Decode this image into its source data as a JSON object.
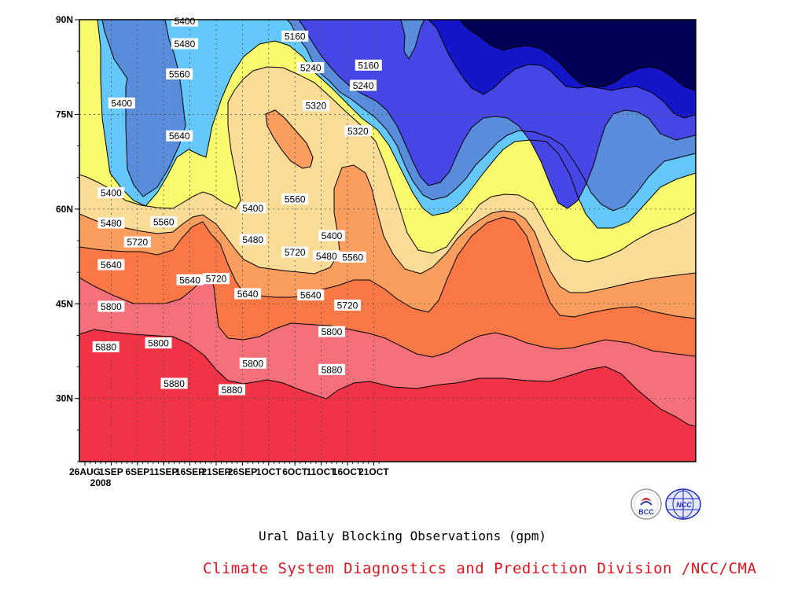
{
  "chart_data": {
    "type": "filled-contour",
    "title": "Ural Daily Blocking Observations (gpm)",
    "x_ticks": [
      "26AUG",
      "1SEP",
      "6SEP",
      "11SEP",
      "16SEP",
      "21SEP",
      "26SEP",
      "1OCT",
      "6OCT",
      "11OCT",
      "16OCT",
      "21OCT"
    ],
    "x_year": "2008",
    "x_range": [
      "2008-08-26",
      "2008-10-21"
    ],
    "y_ticks": [
      "90N",
      "75N",
      "60N",
      "45N",
      "30N"
    ],
    "y_values": [
      90,
      75,
      60,
      45,
      30
    ],
    "ylim": [
      20,
      90
    ],
    "grid": true,
    "contour_levels": [
      5160,
      5240,
      5320,
      5400,
      5480,
      5560,
      5640,
      5720,
      5800,
      5880
    ],
    "band_colors": {
      "below_5160": "#000055",
      "5160_5240": "#1414c8",
      "5240_5320": "#4646e6",
      "5320_5400": "#5a8cdc",
      "5400_5480": "#64c8fa",
      "5480_5560": "#fafa6e",
      "5560_5640": "#fadc96",
      "5640_5720": "#fa9e60",
      "5720_5800": "#fa7846",
      "5800_5880": "#f5707a",
      "above_5880": "#f03446"
    },
    "contour_labels": [
      {
        "text": "5400",
        "date": "2008-09-14",
        "lat": 89.8
      },
      {
        "text": "5480",
        "date": "2008-09-14",
        "lat": 86.2
      },
      {
        "text": "5560",
        "date": "2008-09-13",
        "lat": 81.4
      },
      {
        "text": "5640",
        "date": "2008-09-13",
        "lat": 71.6
      },
      {
        "text": "5400",
        "date": "2008-09-02",
        "lat": 76.8
      },
      {
        "text": "5160",
        "date": "2008-10-05",
        "lat": 87.4
      },
      {
        "text": "5240",
        "date": "2008-10-08",
        "lat": 82.4
      },
      {
        "text": "5320",
        "date": "2008-10-09",
        "lat": 76.4
      },
      {
        "text": "5160",
        "date": "2008-10-19",
        "lat": 82.8
      },
      {
        "text": "5240",
        "date": "2008-10-18",
        "lat": 79.6
      },
      {
        "text": "5320",
        "date": "2008-10-17",
        "lat": 72.4
      },
      {
        "text": "5400",
        "date": "2008-08-31",
        "lat": 62.6
      },
      {
        "text": "5480",
        "date": "2008-08-31",
        "lat": 57.8
      },
      {
        "text": "5640",
        "date": "2008-08-31",
        "lat": 51.2
      },
      {
        "text": "5800",
        "date": "2008-08-31",
        "lat": 44.6
      },
      {
        "text": "5880",
        "date": "2008-08-30",
        "lat": 38.2
      },
      {
        "text": "5720",
        "date": "2008-09-05",
        "lat": 54.8
      },
      {
        "text": "5560",
        "date": "2008-09-10",
        "lat": 58.0
      },
      {
        "text": "5640",
        "date": "2008-09-15",
        "lat": 48.8
      },
      {
        "text": "5720",
        "date": "2008-09-20",
        "lat": 49.0
      },
      {
        "text": "5800",
        "date": "2008-09-09",
        "lat": 38.8
      },
      {
        "text": "5880",
        "date": "2008-09-12",
        "lat": 32.4
      },
      {
        "text": "5880",
        "date": "2008-09-23",
        "lat": 31.4
      },
      {
        "text": "5400",
        "date": "2008-09-27",
        "lat": 60.2
      },
      {
        "text": "5480",
        "date": "2008-09-27",
        "lat": 55.2
      },
      {
        "text": "5640",
        "date": "2008-09-26",
        "lat": 46.6
      },
      {
        "text": "5800",
        "date": "2008-09-27",
        "lat": 35.6
      },
      {
        "text": "5560",
        "date": "2008-10-05",
        "lat": 61.6
      },
      {
        "text": "5720",
        "date": "2008-10-05",
        "lat": 53.2
      },
      {
        "text": "5400",
        "date": "2008-10-12",
        "lat": 55.8
      },
      {
        "text": "5480",
        "date": "2008-10-11",
        "lat": 52.6
      },
      {
        "text": "5560",
        "date": "2008-10-16",
        "lat": 52.4
      },
      {
        "text": "5640",
        "date": "2008-10-08",
        "lat": 46.4
      },
      {
        "text": "5720",
        "date": "2008-10-15",
        "lat": 44.8
      },
      {
        "text": "5800",
        "date": "2008-10-12",
        "lat": 40.6
      },
      {
        "text": "5880",
        "date": "2008-10-12",
        "lat": 34.6
      }
    ]
  },
  "footer": {
    "title": "Ural Daily Blocking Observations (gpm)",
    "credit": "Climate System Diagnostics and Prediction Division /NCC/CMA"
  },
  "logos": {
    "left_text": "BCC",
    "right_text": "NCC"
  }
}
